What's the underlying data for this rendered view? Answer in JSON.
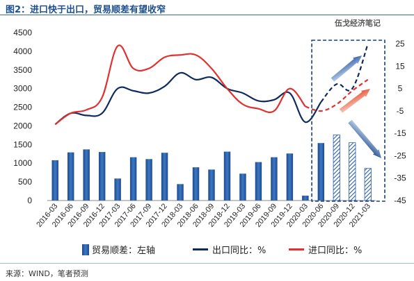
{
  "header": {
    "title": "图2：进口快于出口，贸易顺差有望收窄"
  },
  "watermark": "伍戈经济笔记",
  "source": "来源：WIND，笔者预测",
  "legend": {
    "bar": "贸易顺差：左轴",
    "export": "出口同比：%",
    "import": "进口同比：%"
  },
  "colors": {
    "bar_fill": "#2b5fa8",
    "bar_forecast": "#2b5fa8",
    "export_line": "#0f2a5c",
    "import_line": "#e03030",
    "forecast_box": "#1a3d7a"
  },
  "chart_data": {
    "type": "bar",
    "categories": [
      "2016-03",
      "2016-06",
      "2016-09",
      "2016-12",
      "2017-03",
      "2017-06",
      "2017-09",
      "2017-12",
      "2018-03",
      "2018-06",
      "2018-09",
      "2018-12",
      "2019-03",
      "2019-06",
      "2019-09",
      "2019-12",
      "2020-03",
      "2020-06",
      "2020-09",
      "2020-12",
      "2021-03"
    ],
    "y_left": {
      "ticks": [
        0,
        500,
        1000,
        1500,
        2000,
        2500,
        3000,
        3500,
        4000,
        4500
      ],
      "ylim": [
        0,
        4500
      ]
    },
    "y_right": {
      "ticks": [
        -45,
        -35,
        -25,
        -15,
        -5,
        5,
        15,
        25
      ],
      "ylim": [
        -45,
        30
      ]
    },
    "series": [
      {
        "name": "贸易顺差：左轴",
        "type": "bar",
        "axis": "left",
        "values": [
          1080,
          1290,
          1370,
          1300,
          590,
          1160,
          1110,
          1280,
          440,
          890,
          830,
          1310,
          720,
          1030,
          1160,
          1260,
          130,
          1540,
          1760,
          1550,
          860
        ],
        "forecast_from_index": 18
      },
      {
        "name": "出口同比：%",
        "type": "line",
        "axis": "right",
        "points": [
          [
            0,
            -11
          ],
          [
            1,
            -6
          ],
          [
            2,
            -7
          ],
          [
            3,
            -6
          ],
          [
            4,
            5
          ],
          [
            5,
            4
          ],
          [
            6,
            3
          ],
          [
            7,
            6
          ],
          [
            8,
            12
          ],
          [
            9,
            9
          ],
          [
            10,
            10
          ],
          [
            11,
            5
          ],
          [
            12,
            3
          ],
          [
            13,
            -0.5
          ],
          [
            14,
            0
          ],
          [
            15,
            3
          ],
          [
            16,
            -10
          ],
          [
            17,
            -1
          ],
          [
            18,
            7
          ],
          [
            19,
            5
          ],
          [
            20,
            25
          ]
        ],
        "forecast_from_index": 17
      },
      {
        "name": "进口同比：%",
        "type": "line",
        "axis": "right",
        "points": [
          [
            0,
            -11
          ],
          [
            1,
            -6
          ],
          [
            2,
            -4.5
          ],
          [
            3,
            1
          ],
          [
            4,
            24
          ],
          [
            5,
            14
          ],
          [
            6,
            14
          ],
          [
            7,
            19
          ],
          [
            8,
            20
          ],
          [
            9,
            20
          ],
          [
            10,
            14
          ],
          [
            11,
            5
          ],
          [
            12,
            -2
          ],
          [
            13,
            -4
          ],
          [
            14,
            -5
          ],
          [
            15,
            5
          ],
          [
            16,
            -3
          ],
          [
            17,
            -5
          ],
          [
            18,
            -2
          ],
          [
            19,
            4
          ],
          [
            20,
            9
          ]
        ],
        "forecast_from_index": 16
      }
    ]
  }
}
